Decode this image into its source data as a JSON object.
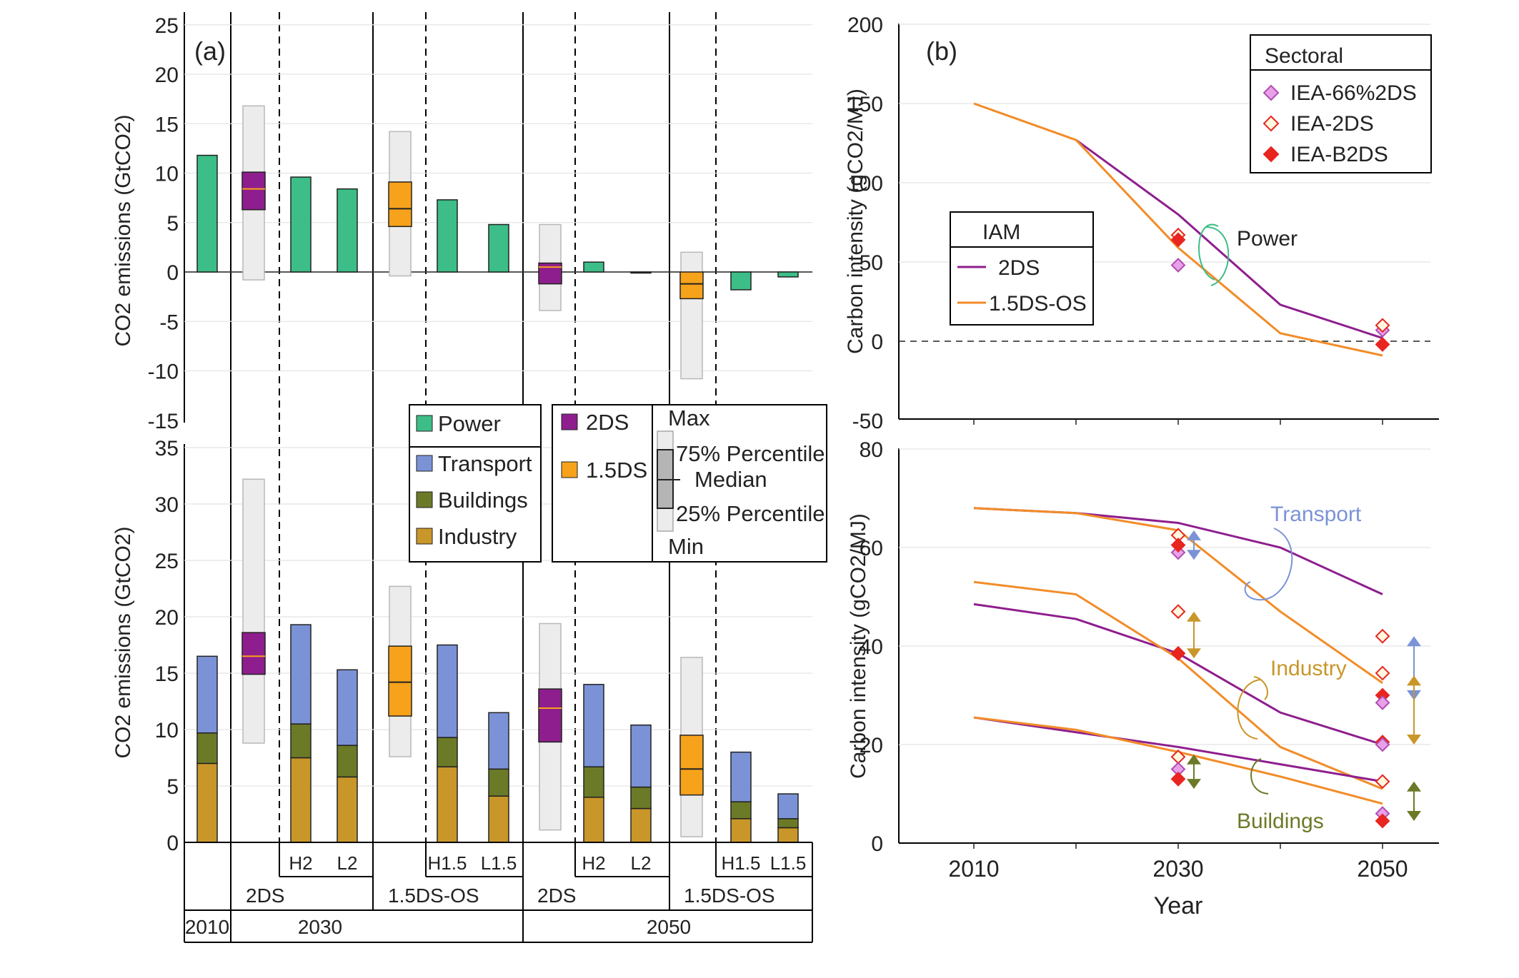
{
  "colors": {
    "power": "#3dbd87",
    "transport": "#7b93d6",
    "buildings": "#6b7a27",
    "industry": "#c9962a",
    "2ds_box": "#8e1e8e",
    "1p5ds_box": "#f7a21b",
    "median": "#f7a21b",
    "range_box": "#ececec",
    "iam_2ds": "#8e1e8e",
    "iam_1p5ds": "#f28c28",
    "iea_66": "#e8a0e8",
    "iea_2ds": "#e8251f",
    "iea_b2ds": "#e8251f",
    "arrow_transport": "#7b93d6",
    "arrow_industry": "#c9962a",
    "arrow_buildings": "#6b7a27"
  },
  "panel_a": {
    "label": "(a)",
    "top_ylabel": "CO2 emissions (GtCO2)",
    "bottom_ylabel": "CO2 emissions (GtCO2)",
    "top_ticks": [
      "25",
      "20",
      "15",
      "10",
      "5",
      "0",
      "-5",
      "-10",
      "-15"
    ],
    "bottom_ticks": [
      "35",
      "30",
      "25",
      "20",
      "15",
      "10",
      "5",
      "0"
    ],
    "sub_labels": [
      "H2",
      "L2",
      "H1.5",
      "L1.5",
      "H2",
      "L2",
      "H1.5",
      "L1.5"
    ],
    "scenario_labels": [
      "2DS",
      "1.5DS-OS",
      "2DS",
      "1.5DS-OS"
    ],
    "year_labels": [
      "2010",
      "2030",
      "2050"
    ]
  },
  "legend_a": {
    "power": "Power",
    "transport": "Transport",
    "buildings": "Buildings",
    "industry": "Industry",
    "box_2ds": "2DS",
    "box_1p5ds": "1.5DS",
    "max": "Max",
    "p75": "75% Percentile",
    "median": "Median",
    "p25": "25% Percentile",
    "min": "Min"
  },
  "panel_b": {
    "label": "(b)",
    "top_ylabel": "Carbon intensity (gCO2/MJ)",
    "bottom_ylabel": "Carbon intensity (gCO2/MJ)",
    "top_ticks": [
      "200",
      "150",
      "100",
      "50",
      "0",
      "-50"
    ],
    "bottom_ticks": [
      "80",
      "60",
      "40",
      "20",
      "0"
    ],
    "xlabel": "Year",
    "xticks": [
      "2010",
      "2030",
      "2050"
    ],
    "annot_power": "Power",
    "annot_transport": "Transport",
    "annot_industry": "Industry",
    "annot_buildings": "Buildings"
  },
  "legend_iam": {
    "title": "IAM",
    "s1": "2DS",
    "s2": "1.5DS-OS"
  },
  "legend_sectoral": {
    "title": "Sectoral",
    "s1": "IEA-66%2DS",
    "s2": "IEA-2DS",
    "s3": "IEA-B2DS"
  },
  "chart_data": [
    {
      "type": "bar",
      "panel": "a-top",
      "title": "",
      "ylabel": "CO2 emissions (GtCO2)",
      "ylim": [
        -15,
        25
      ],
      "bars": [
        {
          "group": "2010",
          "sector": "Power",
          "value": 11.8
        },
        {
          "group": "2030 2DS H2",
          "sector": "Power",
          "value": 9.6
        },
        {
          "group": "2030 2DS L2",
          "sector": "Power",
          "value": 8.4
        },
        {
          "group": "2030 1.5DS-OS H1.5",
          "sector": "Power",
          "value": 7.3
        },
        {
          "group": "2030 1.5DS-OS L1.5",
          "sector": "Power",
          "value": 4.8
        },
        {
          "group": "2050 2DS H2",
          "sector": "Power",
          "value": 1.0
        },
        {
          "group": "2050 2DS L2",
          "sector": "Power",
          "value": -0.1
        },
        {
          "group": "2050 1.5DS-OS H1.5",
          "sector": "Power",
          "value": -1.8
        },
        {
          "group": "2050 1.5DS-OS L1.5",
          "sector": "Power",
          "value": -0.5
        }
      ],
      "boxes": [
        {
          "group": "2030 2DS",
          "min": -0.8,
          "p25": 6.3,
          "median": 8.4,
          "p75": 10.1,
          "max": 16.8
        },
        {
          "group": "2030 1.5DS-OS",
          "min": -0.4,
          "p25": 4.6,
          "median": 6.4,
          "p75": 9.1,
          "max": 14.2
        },
        {
          "group": "2050 2DS",
          "min": -3.9,
          "p25": -1.2,
          "median": 0.5,
          "p75": 0.9,
          "max": 4.8
        },
        {
          "group": "2050 1.5DS-OS",
          "min": -10.8,
          "p25": -2.7,
          "median": -1.2,
          "p75": 0.0,
          "max": 2.0
        }
      ]
    },
    {
      "type": "bar",
      "panel": "a-bottom",
      "title": "",
      "ylabel": "CO2 emissions (GtCO2)",
      "ylim": [
        0,
        35
      ],
      "stacked": true,
      "series": [
        {
          "name": "Industry",
          "values": [
            7.0,
            7.5,
            5.8,
            6.7,
            4.1,
            4.0,
            3.0,
            2.1,
            1.3
          ]
        },
        {
          "name": "Buildings",
          "values": [
            2.7,
            3.0,
            2.8,
            2.6,
            2.4,
            2.7,
            1.9,
            1.5,
            0.8
          ]
        },
        {
          "name": "Transport",
          "values": [
            6.8,
            8.8,
            6.7,
            8.2,
            5.0,
            7.3,
            5.5,
            4.4,
            2.2
          ]
        }
      ],
      "groups": [
        "2010",
        "2030 2DS H2",
        "2030 2DS L2",
        "2030 1.5DS-OS H1.5",
        "2030 1.5DS-OS L1.5",
        "2050 2DS H2",
        "2050 2DS L2",
        "2050 1.5DS-OS H1.5",
        "2050 1.5DS-OS L1.5"
      ],
      "boxes": [
        {
          "group": "2030 2DS",
          "min": 8.8,
          "p25": 14.9,
          "median": 16.5,
          "p75": 18.6,
          "max": 32.2
        },
        {
          "group": "2030 1.5DS-OS",
          "min": 7.6,
          "p25": 11.2,
          "median": 14.2,
          "p75": 17.4,
          "max": 22.7
        },
        {
          "group": "2050 2DS",
          "min": 1.1,
          "p25": 8.9,
          "median": 11.9,
          "p75": 13.6,
          "max": 19.4
        },
        {
          "group": "2050 1.5DS-OS",
          "min": 0.5,
          "p25": 4.2,
          "median": 6.5,
          "p75": 9.5,
          "max": 16.4
        }
      ]
    },
    {
      "type": "line",
      "panel": "b-top",
      "title": "",
      "ylabel": "Carbon intensity (gCO2/MJ)",
      "ylim": [
        -50,
        200
      ],
      "series": [
        {
          "name": "2DS",
          "x": [
            2020,
            2030,
            2040,
            2050
          ],
          "y": [
            127,
            80,
            23,
            2
          ]
        },
        {
          "name": "1.5DS-OS",
          "x": [
            2010,
            2020,
            2030,
            2040,
            2050
          ],
          "y": [
            150,
            127,
            59,
            5,
            -9
          ]
        }
      ],
      "markers": [
        {
          "name": "IEA-66%2DS",
          "x": 2030,
          "y": 48
        },
        {
          "name": "IEA-2DS",
          "x": 2030,
          "y": 67
        },
        {
          "name": "IEA-B2DS",
          "x": 2030,
          "y": 64
        },
        {
          "name": "IEA-66%2DS",
          "x": 2050,
          "y": 7
        },
        {
          "name": "IEA-2DS",
          "x": 2050,
          "y": 10
        },
        {
          "name": "IEA-B2DS",
          "x": 2050,
          "y": -2
        }
      ]
    },
    {
      "type": "line",
      "panel": "b-bottom",
      "title": "",
      "ylabel": "Carbon intensity (gCO2/MJ)",
      "xlabel": "Year",
      "ylim": [
        0,
        80
      ],
      "series": [
        {
          "name": "Transport 2DS",
          "x": [
            2010,
            2020,
            2030,
            2040,
            2050
          ],
          "y": [
            68,
            67,
            65,
            60,
            50.5
          ]
        },
        {
          "name": "Transport 1.5DS-OS",
          "x": [
            2010,
            2020,
            2030,
            2040,
            2050
          ],
          "y": [
            68,
            67,
            63.5,
            47,
            32.5
          ]
        },
        {
          "name": "Industry 2DS",
          "x": [
            2010,
            2020,
            2030,
            2040,
            2050
          ],
          "y": [
            48.5,
            45.5,
            38.5,
            26.5,
            20
          ]
        },
        {
          "name": "Industry 1.5DS-OS",
          "x": [
            2010,
            2020,
            2030,
            2040,
            2050
          ],
          "y": [
            53,
            50.5,
            37.5,
            19.5,
            11
          ]
        },
        {
          "name": "Buildings 2DS",
          "x": [
            2010,
            2020,
            2030,
            2040,
            2050
          ],
          "y": [
            25.5,
            22.5,
            19.5,
            16,
            12.5
          ]
        },
        {
          "name": "Buildings 1.5DS-OS",
          "x": [
            2010,
            2020,
            2030,
            2040,
            2050
          ],
          "y": [
            25.5,
            23,
            18.5,
            13.5,
            8
          ]
        }
      ],
      "markers": [
        {
          "name": "IEA-66%2DS",
          "x": 2030,
          "y": 59
        },
        {
          "name": "IEA-2DS",
          "x": 2030,
          "y": 62.5
        },
        {
          "name": "IEA-B2DS",
          "x": 2030,
          "y": 60.5
        },
        {
          "name": "IEA-2DS",
          "x": 2030,
          "y": 47
        },
        {
          "name": "IEA-B2DS",
          "x": 2030,
          "y": 38.5
        },
        {
          "name": "IEA-2DS",
          "x": 2030,
          "y": 17.5
        },
        {
          "name": "IEA-66%2DS",
          "x": 2030,
          "y": 15
        },
        {
          "name": "IEA-B2DS",
          "x": 2030,
          "y": 13
        },
        {
          "name": "IEA-2DS",
          "x": 2050,
          "y": 42
        },
        {
          "name": "IEA-2DS",
          "x": 2050,
          "y": 34.5
        },
        {
          "name": "IEA-B2DS",
          "x": 2050,
          "y": 30
        },
        {
          "name": "IEA-66%2DS",
          "x": 2050,
          "y": 28.5
        },
        {
          "name": "IEA-B2DS",
          "x": 2050,
          "y": 20.5
        },
        {
          "name": "IEA-66%2DS",
          "x": 2050,
          "y": 20
        },
        {
          "name": "IEA-2DS",
          "x": 2050,
          "y": 12.5
        },
        {
          "name": "IEA-66%2DS",
          "x": 2050,
          "y": 6
        },
        {
          "name": "IEA-B2DS",
          "x": 2050,
          "y": 4.5
        }
      ],
      "ranges": [
        {
          "sector": "Transport",
          "x": 2030,
          "from": 57.5,
          "to": 63.5
        },
        {
          "sector": "Industry",
          "x": 2030,
          "from": 37.5,
          "to": 47
        },
        {
          "sector": "Buildings",
          "x": 2030,
          "from": 11,
          "to": 18
        },
        {
          "sector": "Transport",
          "x": 2050,
          "from": 29,
          "to": 42
        },
        {
          "sector": "Industry",
          "x": 2050,
          "from": 20,
          "to": 34
        },
        {
          "sector": "Buildings",
          "x": 2050,
          "from": 4.5,
          "to": 12.5
        }
      ]
    }
  ]
}
